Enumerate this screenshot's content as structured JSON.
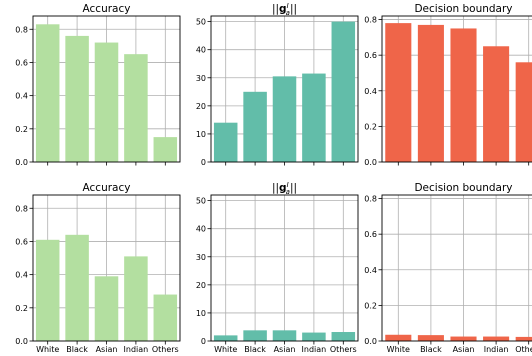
{
  "chart_data": [
    {
      "type": "bar",
      "title": "Accuracy",
      "categories": [
        "White",
        "Black",
        "Asian",
        "Indian",
        "Others"
      ],
      "show_category_labels": false,
      "values": [
        0.83,
        0.76,
        0.72,
        0.65,
        0.15
      ],
      "color": "#b3dfa0",
      "ylim": [
        0,
        0.88
      ],
      "yticks": [
        "0.0",
        "0.2",
        "0.4",
        "0.6",
        "0.8"
      ],
      "grid": true
    },
    {
      "type": "bar",
      "title": "||g_a^I||",
      "categories": [
        "White",
        "Black",
        "Asian",
        "Indian",
        "Others"
      ],
      "show_category_labels": false,
      "values": [
        14,
        25,
        30.5,
        31.5,
        50
      ],
      "color": "#62bda9",
      "ylim": [
        0,
        52
      ],
      "yticks": [
        "0",
        "10",
        "20",
        "30",
        "40",
        "50"
      ],
      "grid": true
    },
    {
      "type": "bar",
      "title": "Decision boundary",
      "categories": [
        "White",
        "Black",
        "Asian",
        "Indian",
        "Others"
      ],
      "show_category_labels": false,
      "values": [
        0.78,
        0.77,
        0.75,
        0.65,
        0.56
      ],
      "color": "#ef6549",
      "ylim": [
        0,
        0.82
      ],
      "yticks": [
        "0.0",
        "0.2",
        "0.4",
        "0.6",
        "0.8"
      ],
      "grid": true
    },
    {
      "type": "bar",
      "title": "Accuracy",
      "categories": [
        "White",
        "Black",
        "Asian",
        "Indian",
        "Others"
      ],
      "show_category_labels": true,
      "values": [
        0.61,
        0.64,
        0.39,
        0.51,
        0.28
      ],
      "color": "#b3dfa0",
      "ylim": [
        0,
        0.88
      ],
      "yticks": [
        "0.0",
        "0.2",
        "0.4",
        "0.6",
        "0.8"
      ],
      "grid": true
    },
    {
      "type": "bar",
      "title": "||g_a^I||",
      "categories": [
        "White",
        "Black",
        "Asian",
        "Indian",
        "Others"
      ],
      "show_category_labels": true,
      "values": [
        2,
        3.8,
        3.8,
        3,
        3.2
      ],
      "color": "#62bda9",
      "ylim": [
        0,
        52
      ],
      "yticks": [
        "0",
        "10",
        "20",
        "30",
        "40",
        "50"
      ],
      "grid": true
    },
    {
      "type": "bar",
      "title": "Decision boundary",
      "categories": [
        "White",
        "Black",
        "Asian",
        "Indian",
        "Others"
      ],
      "show_category_labels": true,
      "values": [
        0.035,
        0.033,
        0.025,
        0.025,
        0.023
      ],
      "color": "#ef6549",
      "ylim": [
        0,
        0.82
      ],
      "yticks": [
        "0.0",
        "0.2",
        "0.4",
        "0.6",
        "0.8"
      ],
      "grid": true
    }
  ]
}
